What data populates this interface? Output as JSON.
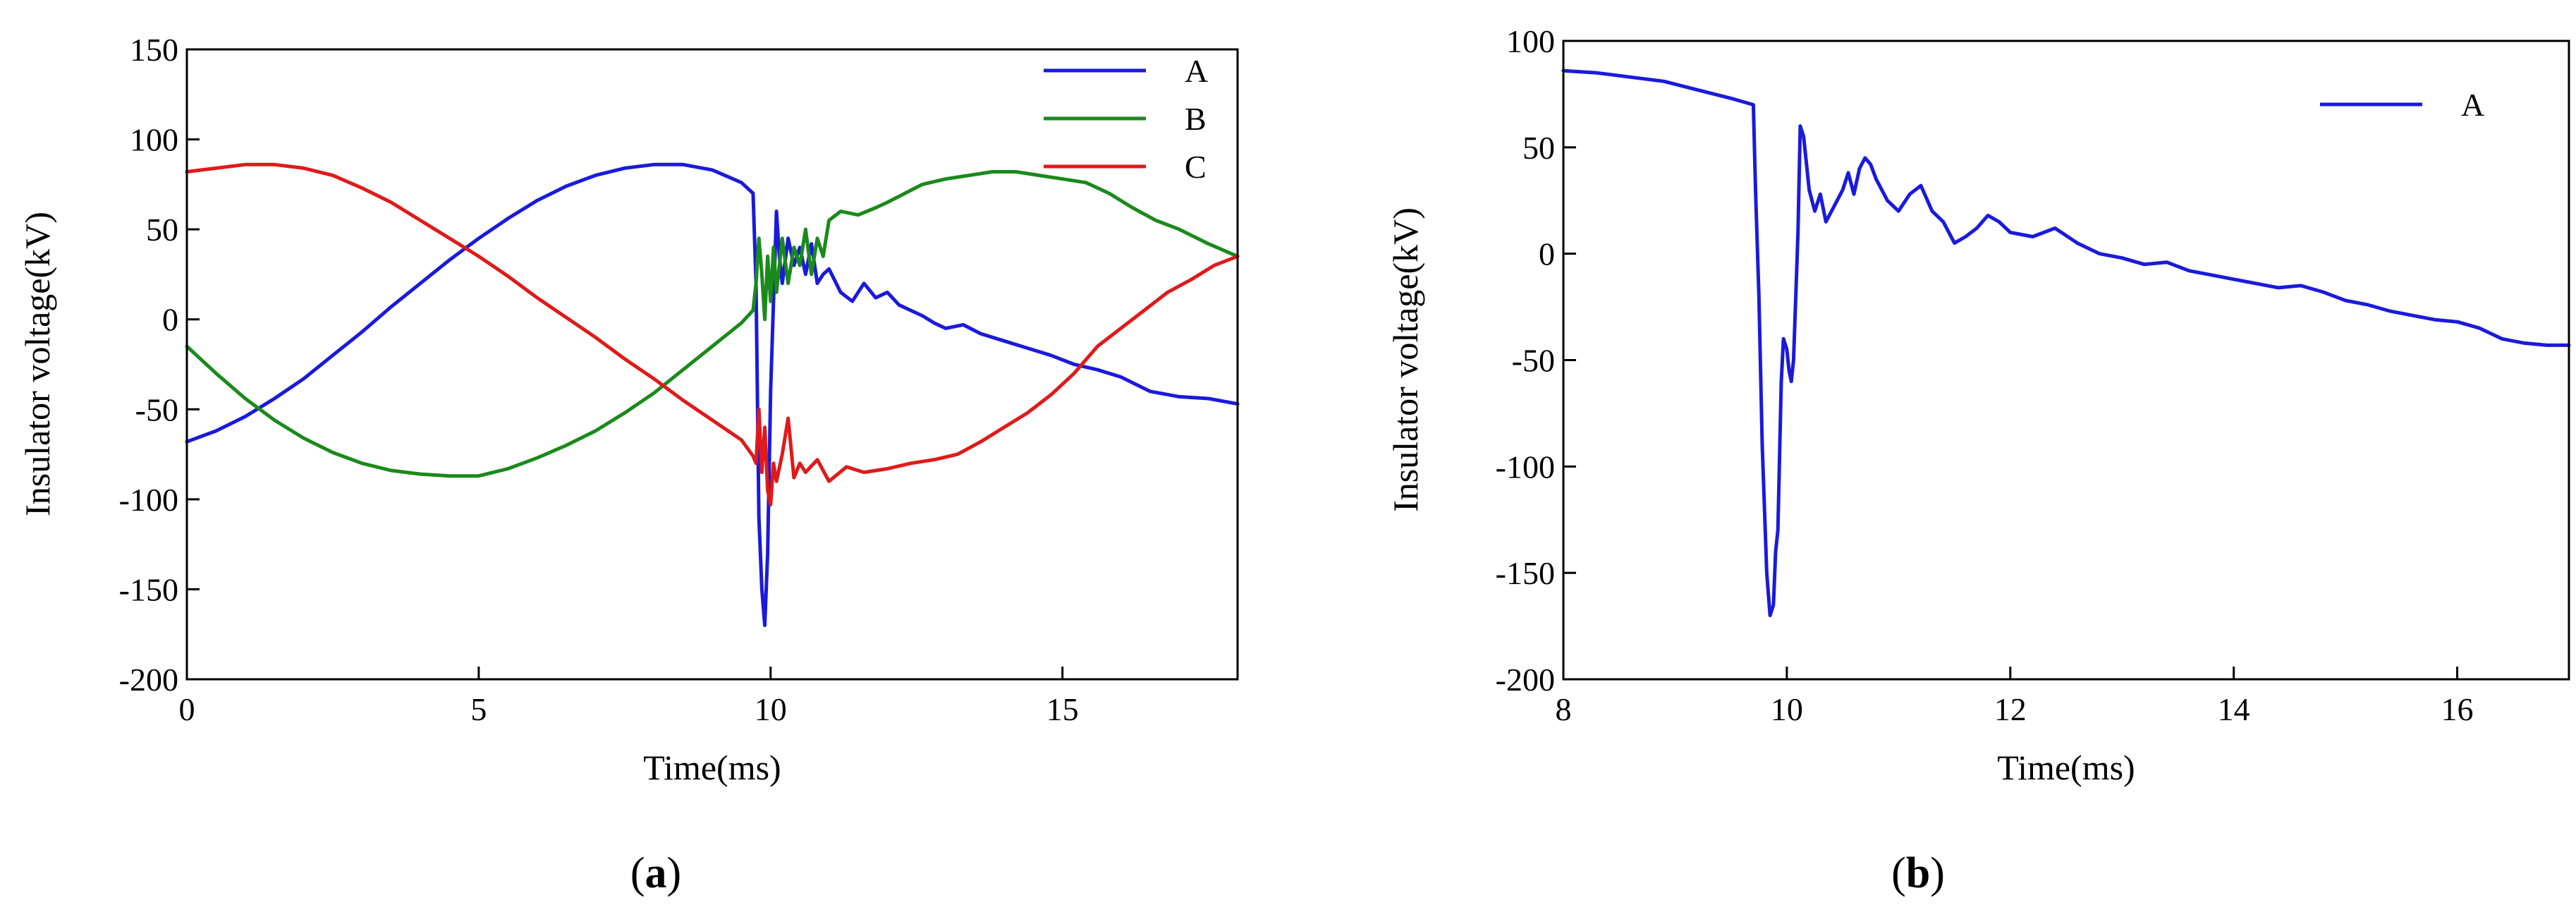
{
  "chart_data": [
    {
      "type": "line",
      "panel_label": "a",
      "xlabel": "Time(ms)",
      "ylabel": "Insulator voltage(kV)",
      "xlim": [
        0,
        18
      ],
      "ylim": [
        -200,
        150
      ],
      "xticks": [
        0,
        5,
        10,
        15
      ],
      "yticks": [
        -200,
        -150,
        -100,
        -50,
        0,
        50,
        100,
        150
      ],
      "legend_position": "top-right",
      "series": [
        {
          "name": "A",
          "color": "#1a1adc",
          "x": [
            0,
            0.5,
            1,
            1.5,
            2,
            2.5,
            3,
            3.5,
            4,
            4.5,
            5,
            5.5,
            6,
            6.5,
            7,
            7.5,
            8,
            8.5,
            9,
            9.5,
            9.7,
            9.75,
            9.8,
            9.85,
            9.9,
            9.95,
            10,
            10.05,
            10.1,
            10.15,
            10.2,
            10.3,
            10.4,
            10.5,
            10.6,
            10.7,
            10.8,
            10.9,
            11,
            11.2,
            11.4,
            11.6,
            11.8,
            12,
            12.2,
            12.4,
            12.6,
            12.8,
            13,
            13.3,
            13.6,
            14,
            14.4,
            14.8,
            15.2,
            15.6,
            16,
            16.5,
            17,
            17.5,
            18
          ],
          "y": [
            -68,
            -62,
            -54,
            -44,
            -33,
            -20,
            -7,
            7,
            20,
            33,
            45,
            56,
            66,
            74,
            80,
            84,
            86,
            86,
            83,
            76,
            70,
            20,
            -110,
            -150,
            -170,
            -130,
            -40,
            10,
            60,
            35,
            20,
            45,
            30,
            40,
            25,
            42,
            20,
            25,
            28,
            15,
            10,
            20,
            12,
            15,
            8,
            5,
            2,
            -2,
            -5,
            -3,
            -8,
            -12,
            -16,
            -20,
            -25,
            -28,
            -32,
            -40,
            -43,
            -44,
            -47
          ]
        },
        {
          "name": "B",
          "color": "#1a8a1a",
          "x": [
            0,
            0.5,
            1,
            1.5,
            2,
            2.5,
            3,
            3.5,
            4,
            4.5,
            5,
            5.5,
            6,
            6.5,
            7,
            7.5,
            8,
            8.5,
            9,
            9.5,
            9.7,
            9.75,
            9.8,
            9.85,
            9.9,
            9.95,
            10,
            10.05,
            10.1,
            10.2,
            10.3,
            10.4,
            10.5,
            10.6,
            10.7,
            10.8,
            10.9,
            11,
            11.2,
            11.5,
            11.8,
            12,
            12.3,
            12.6,
            13,
            13.4,
            13.8,
            14.2,
            14.6,
            15,
            15.4,
            15.8,
            16.2,
            16.6,
            17,
            17.5,
            18
          ],
          "y": [
            -15,
            -30,
            -44,
            -56,
            -66,
            -74,
            -80,
            -84,
            -86,
            -87,
            -87,
            -83,
            -77,
            -70,
            -62,
            -52,
            -41,
            -28,
            -15,
            -2,
            5,
            20,
            45,
            25,
            0,
            35,
            10,
            40,
            15,
            45,
            20,
            40,
            30,
            50,
            25,
            45,
            35,
            55,
            60,
            58,
            62,
            65,
            70,
            75,
            78,
            80,
            82,
            82,
            80,
            78,
            76,
            70,
            62,
            55,
            50,
            42,
            35
          ]
        },
        {
          "name": "C",
          "color": "#e01a1a",
          "x": [
            0,
            0.5,
            1,
            1.5,
            2,
            2.5,
            3,
            3.5,
            4,
            4.5,
            5,
            5.5,
            6,
            6.5,
            7,
            7.5,
            8,
            8.5,
            9,
            9.5,
            9.7,
            9.75,
            9.8,
            9.85,
            9.9,
            9.95,
            10,
            10.05,
            10.1,
            10.2,
            10.3,
            10.4,
            10.5,
            10.6,
            10.8,
            11,
            11.3,
            11.6,
            12,
            12.4,
            12.8,
            13.2,
            13.6,
            14,
            14.4,
            14.8,
            15.2,
            15.6,
            16,
            16.4,
            16.8,
            17.2,
            17.6,
            18
          ],
          "y": [
            82,
            84,
            86,
            86,
            84,
            80,
            73,
            65,
            55,
            45,
            35,
            24,
            12,
            1,
            -10,
            -22,
            -33,
            -45,
            -56,
            -67,
            -76,
            -80,
            -50,
            -85,
            -60,
            -95,
            -103,
            -80,
            -90,
            -75,
            -55,
            -88,
            -80,
            -85,
            -78,
            -90,
            -82,
            -85,
            -83,
            -80,
            -78,
            -75,
            -68,
            -60,
            -52,
            -42,
            -30,
            -15,
            -5,
            5,
            15,
            22,
            30,
            35
          ]
        }
      ]
    },
    {
      "type": "line",
      "panel_label": "b",
      "xlabel": "Time(ms)",
      "ylabel": "Insulator voltage(kV)",
      "xlim": [
        8,
        17
      ],
      "ylim": [
        -200,
        100
      ],
      "xticks": [
        8,
        10,
        12,
        14,
        16
      ],
      "yticks": [
        -200,
        -150,
        -100,
        -50,
        0,
        50,
        100
      ],
      "legend_position": "top-right",
      "series": [
        {
          "name": "A",
          "color": "#1a1adc",
          "x": [
            8,
            8.3,
            8.6,
            8.9,
            9.2,
            9.5,
            9.7,
            9.72,
            9.75,
            9.78,
            9.8,
            9.82,
            9.85,
            9.88,
            9.9,
            9.92,
            9.95,
            9.97,
            10,
            10.02,
            10.04,
            10.06,
            10.08,
            10.1,
            10.12,
            10.15,
            10.2,
            10.25,
            10.3,
            10.35,
            10.4,
            10.45,
            10.5,
            10.55,
            10.6,
            10.65,
            10.7,
            10.75,
            10.8,
            10.9,
            11,
            11.1,
            11.2,
            11.3,
            11.4,
            11.5,
            11.6,
            11.7,
            11.8,
            11.9,
            12,
            12.2,
            12.4,
            12.6,
            12.8,
            13,
            13.2,
            13.4,
            13.6,
            13.8,
            14,
            14.2,
            14.4,
            14.6,
            14.8,
            15,
            15.2,
            15.4,
            15.6,
            15.8,
            16,
            16.2,
            16.4,
            16.6,
            16.8,
            17
          ],
          "y": [
            86,
            85,
            83,
            81,
            77,
            73,
            70,
            30,
            -20,
            -90,
            -120,
            -150,
            -170,
            -165,
            -140,
            -130,
            -60,
            -40,
            -45,
            -55,
            -60,
            -50,
            -20,
            10,
            60,
            55,
            30,
            20,
            28,
            15,
            20,
            25,
            30,
            38,
            28,
            40,
            45,
            42,
            35,
            25,
            20,
            28,
            32,
            20,
            15,
            5,
            8,
            12,
            18,
            15,
            10,
            8,
            12,
            5,
            0,
            -2,
            -5,
            -4,
            -8,
            -10,
            -12,
            -14,
            -16,
            -15,
            -18,
            -22,
            -24,
            -27,
            -29,
            -31,
            -32,
            -35,
            -40,
            -42,
            -43,
            -43
          ]
        }
      ]
    }
  ]
}
